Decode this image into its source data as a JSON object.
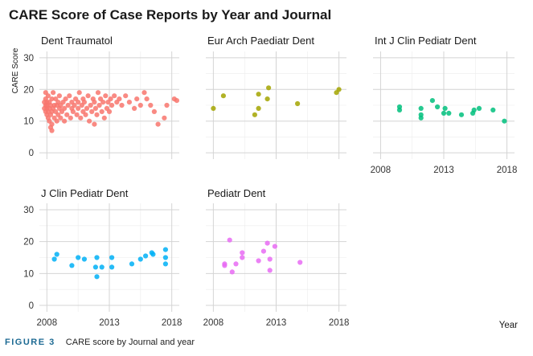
{
  "chart_data": {
    "type": "scatter",
    "title": "CARE Score of Case Reports by Year and Journal",
    "ylabel": "CARE Score",
    "xlabel": "Year",
    "xlim": [
      2007.4,
      2018.6
    ],
    "ylim": [
      -2,
      32
    ],
    "xticks": [
      2008,
      2013,
      2018
    ],
    "yticks": [
      0,
      10,
      20,
      30
    ],
    "panels": [
      {
        "name": "Dent Traumatol",
        "color": "#F8766D",
        "points": [
          [
            2007.8,
            14
          ],
          [
            2007.8,
            16
          ],
          [
            2007.9,
            13
          ],
          [
            2007.9,
            15
          ],
          [
            2007.9,
            17
          ],
          [
            2007.9,
            19
          ],
          [
            2008.0,
            12
          ],
          [
            2008.0,
            14
          ],
          [
            2008.0,
            15
          ],
          [
            2008.0,
            16
          ],
          [
            2008.1,
            11
          ],
          [
            2008.1,
            13
          ],
          [
            2008.1,
            18
          ],
          [
            2008.2,
            10
          ],
          [
            2008.2,
            14
          ],
          [
            2008.2,
            16
          ],
          [
            2008.3,
            8
          ],
          [
            2008.3,
            12
          ],
          [
            2008.3,
            15
          ],
          [
            2008.4,
            7
          ],
          [
            2008.4,
            9
          ],
          [
            2008.4,
            13
          ],
          [
            2008.4,
            17
          ],
          [
            2008.5,
            14
          ],
          [
            2008.5,
            19
          ],
          [
            2008.6,
            11
          ],
          [
            2008.6,
            15
          ],
          [
            2008.7,
            13
          ],
          [
            2008.7,
            17
          ],
          [
            2008.8,
            10
          ],
          [
            2008.8,
            15
          ],
          [
            2008.9,
            12
          ],
          [
            2008.9,
            16
          ],
          [
            2009.0,
            14
          ],
          [
            2009.0,
            18
          ],
          [
            2009.1,
            11
          ],
          [
            2009.1,
            15
          ],
          [
            2009.2,
            13
          ],
          [
            2009.3,
            16
          ],
          [
            2009.4,
            10
          ],
          [
            2009.4,
            14
          ],
          [
            2009.5,
            17
          ],
          [
            2009.6,
            12
          ],
          [
            2009.7,
            15
          ],
          [
            2009.8,
            18
          ],
          [
            2009.9,
            11
          ],
          [
            2010.0,
            14
          ],
          [
            2010.0,
            16
          ],
          [
            2010.1,
            13
          ],
          [
            2010.2,
            15
          ],
          [
            2010.3,
            17
          ],
          [
            2010.4,
            12
          ],
          [
            2010.5,
            14
          ],
          [
            2010.5,
            16
          ],
          [
            2010.6,
            19
          ],
          [
            2010.7,
            11
          ],
          [
            2010.8,
            15
          ],
          [
            2010.9,
            13
          ],
          [
            2010.9,
            17
          ],
          [
            2011.0,
            16
          ],
          [
            2011.1,
            12
          ],
          [
            2011.2,
            14
          ],
          [
            2011.3,
            18
          ],
          [
            2011.4,
            10
          ],
          [
            2011.5,
            15
          ],
          [
            2011.6,
            13
          ],
          [
            2011.7,
            17
          ],
          [
            2011.8,
            9
          ],
          [
            2011.8,
            16
          ],
          [
            2011.9,
            14
          ],
          [
            2012.0,
            12
          ],
          [
            2012.1,
            19
          ],
          [
            2012.2,
            15
          ],
          [
            2012.3,
            17
          ],
          [
            2012.4,
            13
          ],
          [
            2012.5,
            16
          ],
          [
            2012.6,
            11
          ],
          [
            2012.7,
            18
          ],
          [
            2012.8,
            14
          ],
          [
            2012.9,
            16
          ],
          [
            2013.0,
            13
          ],
          [
            2013.1,
            17
          ],
          [
            2013.2,
            15
          ],
          [
            2013.4,
            18
          ],
          [
            2013.6,
            16
          ],
          [
            2013.8,
            17
          ],
          [
            2014.0,
            15
          ],
          [
            2014.3,
            18
          ],
          [
            2014.6,
            16
          ],
          [
            2015.0,
            14
          ],
          [
            2015.2,
            17
          ],
          [
            2015.5,
            15
          ],
          [
            2015.8,
            19
          ],
          [
            2016.0,
            17
          ],
          [
            2016.3,
            15
          ],
          [
            2016.6,
            13
          ],
          [
            2016.9,
            9
          ],
          [
            2017.4,
            11
          ],
          [
            2017.6,
            15
          ],
          [
            2018.2,
            17
          ],
          [
            2018.4,
            16.5
          ]
        ]
      },
      {
        "name": "Eur Arch Paediatr Dent",
        "color": "#A3A500",
        "points": [
          [
            2008.0,
            14
          ],
          [
            2008.8,
            18
          ],
          [
            2011.3,
            12
          ],
          [
            2011.6,
            14
          ],
          [
            2011.6,
            18.5
          ],
          [
            2012.3,
            17
          ],
          [
            2012.4,
            20.5
          ],
          [
            2014.7,
            15.5
          ],
          [
            2017.8,
            19
          ],
          [
            2018.0,
            20
          ]
        ]
      },
      {
        "name": "Int J Clin Pediatr Dent",
        "color": "#00BF7D",
        "points": [
          [
            2009.5,
            13.5
          ],
          [
            2009.5,
            14.5
          ],
          [
            2011.2,
            11
          ],
          [
            2011.2,
            12
          ],
          [
            2011.2,
            14
          ],
          [
            2012.1,
            16.5
          ],
          [
            2012.5,
            14.5
          ],
          [
            2013.0,
            12.5
          ],
          [
            2013.1,
            14
          ],
          [
            2013.4,
            12.5
          ],
          [
            2014.4,
            12
          ],
          [
            2015.3,
            12.5
          ],
          [
            2015.4,
            13.5
          ],
          [
            2015.8,
            14
          ],
          [
            2016.9,
            13.5
          ],
          [
            2017.8,
            10
          ]
        ]
      },
      {
        "name": "J Clin Pediatr Dent",
        "color": "#00B0F6",
        "points": [
          [
            2008.6,
            14.5
          ],
          [
            2008.8,
            16
          ],
          [
            2010.0,
            12.5
          ],
          [
            2010.5,
            15
          ],
          [
            2011.0,
            14.5
          ],
          [
            2011.9,
            12
          ],
          [
            2012.0,
            9
          ],
          [
            2012.0,
            15
          ],
          [
            2012.4,
            12
          ],
          [
            2013.2,
            15
          ],
          [
            2013.2,
            12
          ],
          [
            2014.8,
            13
          ],
          [
            2015.5,
            14.5
          ],
          [
            2015.9,
            15.5
          ],
          [
            2016.4,
            16.5
          ],
          [
            2016.5,
            16
          ],
          [
            2017.5,
            17.5
          ],
          [
            2017.5,
            15
          ],
          [
            2017.5,
            13
          ]
        ]
      },
      {
        "name": "Pediatr Dent",
        "color": "#E76BF3",
        "points": [
          [
            2008.9,
            13
          ],
          [
            2008.9,
            12.5
          ],
          [
            2009.3,
            20.5
          ],
          [
            2009.5,
            10.5
          ],
          [
            2009.8,
            13
          ],
          [
            2010.3,
            16.5
          ],
          [
            2010.3,
            15
          ],
          [
            2011.6,
            14
          ],
          [
            2012.0,
            17
          ],
          [
            2012.3,
            19.5
          ],
          [
            2012.5,
            11
          ],
          [
            2012.5,
            14.5
          ],
          [
            2012.9,
            18.5
          ],
          [
            2014.9,
            13.5
          ]
        ]
      }
    ]
  },
  "caption": {
    "label": "FIGURE 3",
    "text": "CARE score by Journal and year"
  }
}
